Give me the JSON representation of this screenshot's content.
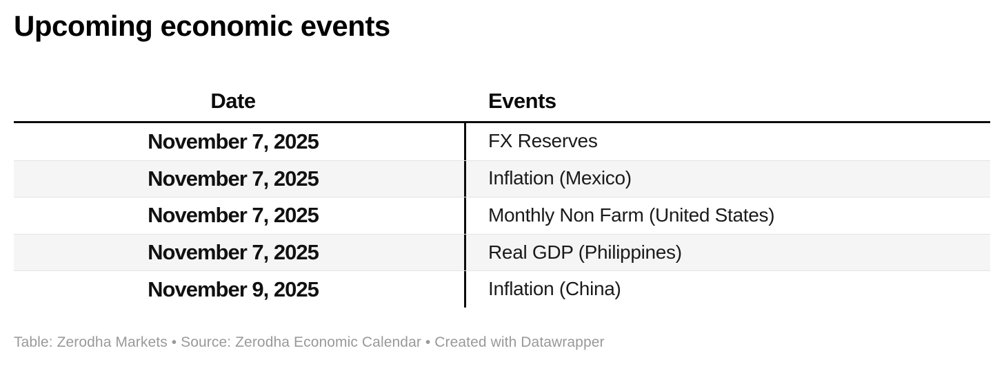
{
  "title": "Upcoming economic events",
  "chart_data": {
    "type": "table",
    "title": "Upcoming economic events",
    "columns": [
      "Date",
      "Events"
    ],
    "rows": [
      [
        "November 7, 2025",
        "FX Reserves"
      ],
      [
        "November 7, 2025",
        "Inflation (Mexico)"
      ],
      [
        "November 7, 2025",
        "Monthly Non Farm (United States)"
      ],
      [
        "November 7, 2025",
        "Real GDP (Philippines)"
      ],
      [
        "November 9, 2025",
        "Inflation (China)"
      ]
    ],
    "layout_hints": {
      "date_column_alignment": "center",
      "events_column_alignment": "left",
      "zebra_striping": true,
      "header_rule": "thick-black",
      "column_divider": "vertical-black-line"
    }
  },
  "table": {
    "columns": [
      "Date",
      "Events"
    ],
    "rows": [
      {
        "date": "November 7, 2025",
        "event": "FX Reserves"
      },
      {
        "date": "November 7, 2025",
        "event": "Inflation (Mexico)"
      },
      {
        "date": "November 7, 2025",
        "event": "Monthly Non Farm (United States)"
      },
      {
        "date": "November 7, 2025",
        "event": "Real GDP (Philippines)"
      },
      {
        "date": "November 9, 2025",
        "event": "Inflation (China)"
      }
    ]
  },
  "footer": {
    "text": "Table: Zerodha Markets • Source: Zerodha Economic Calendar • Created with Datawrapper"
  },
  "colors": {
    "title_text": "#000000",
    "header_rule": "#0b0b0b",
    "column_divider": "#0b0b0b",
    "cell_text": "#1a1a1a",
    "alt_row_background": "#f5f5f5",
    "row_separator": "#e3e3e3",
    "footer_text": "#999999",
    "background": "#ffffff"
  }
}
